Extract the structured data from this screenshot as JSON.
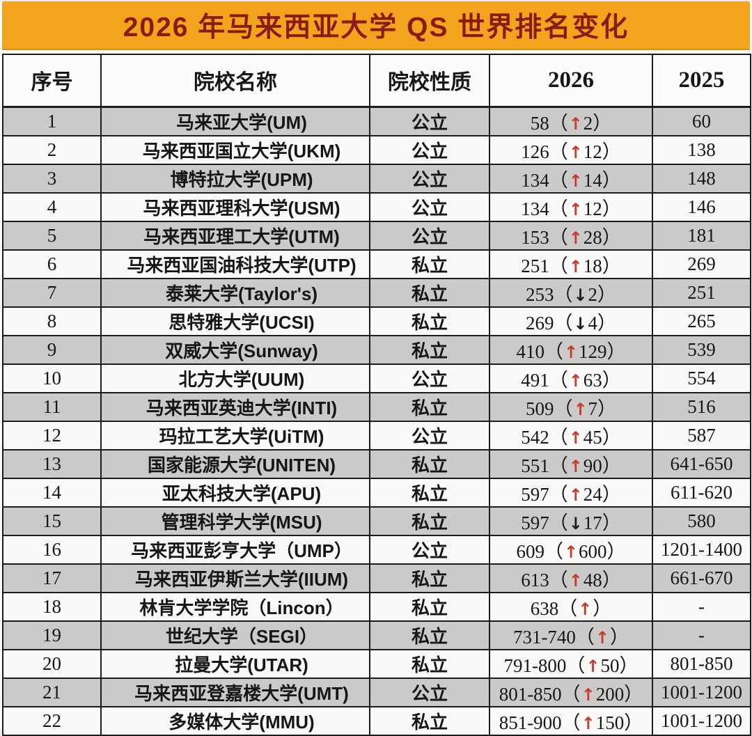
{
  "title": "2026 年马来西亚大学 QS 世界排名变化",
  "colors": {
    "title_bg": "#F3A41E",
    "title_text": "#8A1B10",
    "row_alt_gray": "#CBCAC9",
    "row_white": "#FAF9F7",
    "border": "#1B1B1B",
    "up_arrow": "#C23B2E",
    "down_arrow": "#1A1A1A"
  },
  "icons": {
    "up": "↑",
    "down": "↓"
  },
  "table": {
    "headers": [
      "序号",
      "院校名称",
      "院校性质",
      "2026",
      "2025"
    ],
    "rows": [
      {
        "no": "1",
        "name": "马来亚大学(UM)",
        "type": "公立",
        "rank_2026": "58",
        "direction": "up",
        "change": "2",
        "rank_2025": "60"
      },
      {
        "no": "2",
        "name": "马来西亚国立大学(UKM)",
        "type": "公立",
        "rank_2026": "126",
        "direction": "up",
        "change": "12",
        "rank_2025": "138"
      },
      {
        "no": "3",
        "name": "博特拉大学(UPM)",
        "type": "公立",
        "rank_2026": "134",
        "direction": "up",
        "change": "14",
        "rank_2025": "148"
      },
      {
        "no": "4",
        "name": "马来西亚理科大学(USM)",
        "type": "公立",
        "rank_2026": "134",
        "direction": "up",
        "change": "12",
        "rank_2025": "146"
      },
      {
        "no": "5",
        "name": "马来西亚理工大学(UTM)",
        "type": "公立",
        "rank_2026": "153",
        "direction": "up",
        "change": "28",
        "rank_2025": "181"
      },
      {
        "no": "6",
        "name": "马来西亚国油科技大学(UTP)",
        "type": "私立",
        "rank_2026": "251",
        "direction": "up",
        "change": "18",
        "rank_2025": "269"
      },
      {
        "no": "7",
        "name": "泰莱大学(Taylor's)",
        "type": "私立",
        "rank_2026": "253",
        "direction": "down",
        "change": "2",
        "rank_2025": "251"
      },
      {
        "no": "8",
        "name": "思特雅大学(UCSI)",
        "type": "私立",
        "rank_2026": "269",
        "direction": "down",
        "change": "4",
        "rank_2025": "265"
      },
      {
        "no": "9",
        "name": "双威大学(Sunway)",
        "type": "私立",
        "rank_2026": "410",
        "direction": "up",
        "change": "129",
        "rank_2025": "539"
      },
      {
        "no": "10",
        "name": "北方大学(UUM)",
        "type": "公立",
        "rank_2026": "491",
        "direction": "up",
        "change": "63",
        "rank_2025": "554"
      },
      {
        "no": "11",
        "name": "马来西亚英迪大学(INTI)",
        "type": "私立",
        "rank_2026": "509",
        "direction": "up",
        "change": "7",
        "rank_2025": "516"
      },
      {
        "no": "12",
        "name": "玛拉工艺大学(UiTM)",
        "type": "公立",
        "rank_2026": "542",
        "direction": "up",
        "change": "45",
        "rank_2025": "587"
      },
      {
        "no": "13",
        "name": "国家能源大学(UNITEN)",
        "type": "私立",
        "rank_2026": "551",
        "direction": "up",
        "change": "90",
        "rank_2025": "641-650"
      },
      {
        "no": "14",
        "name": "亚太科技大学(APU)",
        "type": "私立",
        "rank_2026": "597",
        "direction": "up",
        "change": "24",
        "rank_2025": "611-620"
      },
      {
        "no": "15",
        "name": "管理科学大学(MSU)",
        "type": "私立",
        "rank_2026": "597",
        "direction": "down",
        "change": "17",
        "rank_2025": "580"
      },
      {
        "no": "16",
        "name": "马来西亚彭亨大学（UMP）",
        "type": "公立",
        "rank_2026": "609",
        "direction": "up",
        "change": "600",
        "rank_2025": "1201-1400"
      },
      {
        "no": "17",
        "name": "马来西亚伊斯兰大学(IIUM)",
        "type": "私立",
        "rank_2026": "613",
        "direction": "up",
        "change": "48",
        "rank_2025": "661-670"
      },
      {
        "no": "18",
        "name": "林肯大学学院（Lincon）",
        "type": "私立",
        "rank_2026": "638",
        "direction": "up",
        "change": "",
        "rank_2025": "-"
      },
      {
        "no": "19",
        "name": "世纪大学（SEGI）",
        "type": "私立",
        "rank_2026": "731-740",
        "direction": "up",
        "change": "",
        "rank_2025": "-"
      },
      {
        "no": "20",
        "name": "拉曼大学(UTAR)",
        "type": "私立",
        "rank_2026": "791-800",
        "direction": "up",
        "change": "50",
        "rank_2025": "801-850"
      },
      {
        "no": "21",
        "name": "马来西亚登嘉楼大学(UMT)",
        "type": "公立",
        "rank_2026": "801-850",
        "direction": "up",
        "change": "200",
        "rank_2025": "1001-1200"
      },
      {
        "no": "22",
        "name": "多媒体大学(MMU)",
        "type": "私立",
        "rank_2026": "851-900",
        "direction": "up",
        "change": "150",
        "rank_2025": "1001-1200"
      }
    ]
  }
}
